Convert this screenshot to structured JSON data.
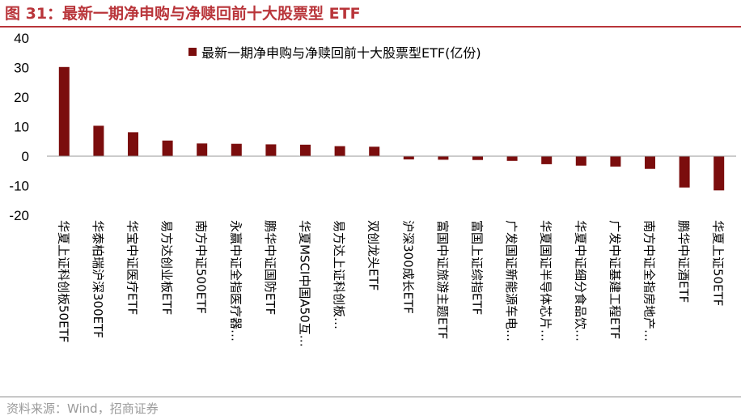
{
  "figure": {
    "title": "图 31：最新一期净申购与净赎回前十大股票型 ETF",
    "source": "资料来源：Wind，招商证券"
  },
  "colors": {
    "accent": "#b9353a",
    "bar": "#7b0d0d",
    "rule_bottom": "#8a8a8a",
    "source_text": "#9a9a9a"
  },
  "chart_data": {
    "type": "bar",
    "categories": [
      "华夏上证科创板50ETF",
      "华泰柏瑞沪深300ETF",
      "华宝中证医疗ETF",
      "易方达创业板ETF",
      "南方中证500ETF",
      "永赢中证全指医疗器…",
      "鹏华中证国防ETF",
      "华夏MSCI中国A50互…",
      "易方达上证科创板…",
      "双创龙头ETF",
      "沪深300成长ETF",
      "富国中证旅游主题ETF",
      "富国上证综指ETF",
      "广发国证新能源车电…",
      "华夏国证半导体芯片…",
      "华夏中证细分食品饮…",
      "广发中证基建工程ETF",
      "南方中证全指房地产…",
      "鹏华中证酒ETF",
      "华夏上证50ETF"
    ],
    "series": [
      {
        "name": "最新一期净申购与净赎回前十大股票型ETF(亿份)",
        "values": [
          30.2,
          10.3,
          8.1,
          5.3,
          4.3,
          4.2,
          4.0,
          3.9,
          3.4,
          3.2,
          -1.1,
          -1.2,
          -1.3,
          -1.6,
          -2.7,
          -3.2,
          -3.5,
          -4.3,
          -10.6,
          -11.6
        ]
      }
    ],
    "title": "",
    "xlabel": "",
    "ylabel": "",
    "ylim": [
      -20,
      40
    ],
    "yticks": [
      -20,
      -10,
      0,
      10,
      20,
      30,
      40
    ],
    "ytick_labels": [
      "-20",
      "-10",
      "0",
      "10",
      "20",
      "30",
      "40"
    ],
    "grid": false,
    "legend_position": "top-center"
  }
}
